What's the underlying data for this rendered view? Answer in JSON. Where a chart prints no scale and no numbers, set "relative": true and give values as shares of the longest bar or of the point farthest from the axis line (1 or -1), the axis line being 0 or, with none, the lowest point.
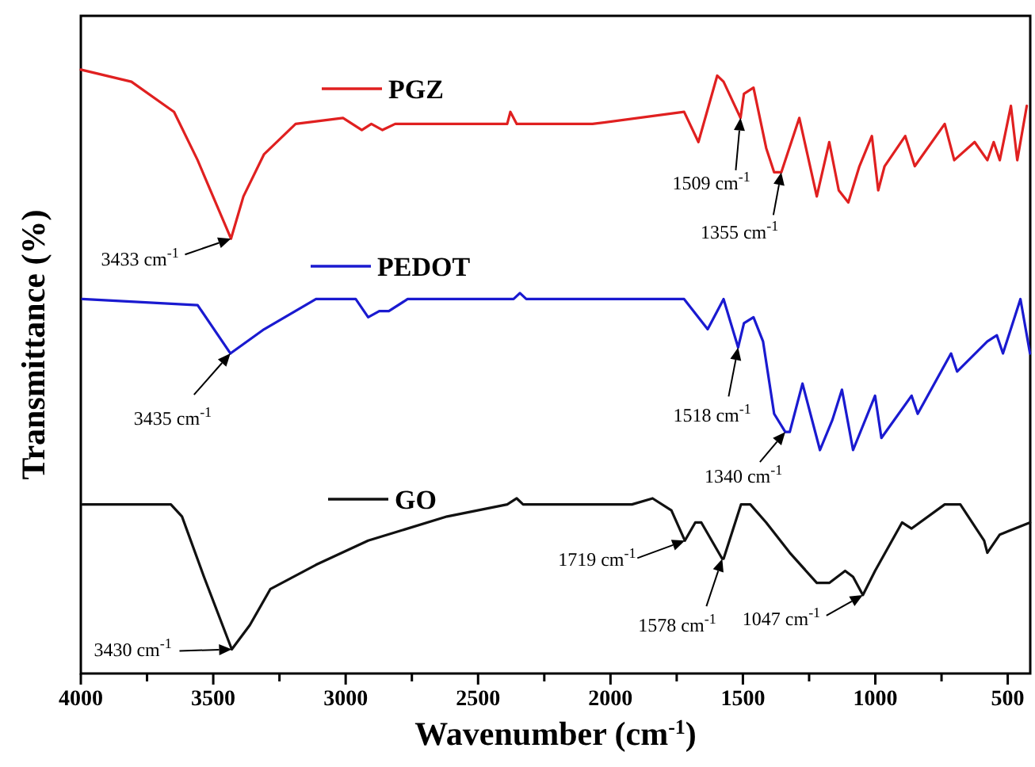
{
  "chart_data": {
    "type": "line",
    "relative": true,
    "xlabel": "Wavenumber (cm$^{-1}$)",
    "ylabel": "Transmittance (%)",
    "xlim": [
      4000,
      415
    ],
    "xticks": [
      4000,
      {
        "value": 3750,
        "label": null
      },
      3500,
      {
        "value": 3250,
        "label": null
      },
      3000,
      {
        "value": 2750,
        "label": null
      },
      2500,
      {
        "value": 2250,
        "label": null
      },
      2000,
      {
        "value": 1750,
        "label": null
      },
      1500,
      {
        "value": 1250,
        "label": null
      },
      1000,
      {
        "value": 750,
        "label": null
      },
      500
    ],
    "grid": false,
    "line_style": "solid",
    "marker": "none",
    "legend": "left",
    "series": [
      {
        "name": "PGZ",
        "color": "#e02020",
        "x": [
          4000,
          3809,
          3648,
          3559,
          3433,
          3386,
          3308,
          3189,
          3010,
          2939,
          2903,
          2861,
          2813,
          2390,
          2378,
          2354,
          2318,
          2068,
          1722,
          1668,
          1597,
          1573,
          1509,
          1496,
          1460,
          1412,
          1382,
          1355,
          1287,
          1221,
          1174,
          1138,
          1102,
          1060,
          1013,
          989,
          965,
          887,
          851,
          738,
          702,
          625,
          577,
          553,
          530,
          488,
          464,
          428
        ],
        "values": [
          1.0,
          0.98,
          0.93,
          0.85,
          0.72,
          0.79,
          0.86,
          0.91,
          0.92,
          0.9,
          0.91,
          0.9,
          0.91,
          0.91,
          0.93,
          0.91,
          0.91,
          0.91,
          0.93,
          0.88,
          0.99,
          0.98,
          0.92,
          0.96,
          0.97,
          0.87,
          0.83,
          0.83,
          0.92,
          0.79,
          0.88,
          0.8,
          0.78,
          0.84,
          0.89,
          0.8,
          0.84,
          0.89,
          0.84,
          0.91,
          0.85,
          0.88,
          0.85,
          0.88,
          0.85,
          0.94,
          0.85,
          0.94
        ]
      },
      {
        "name": "PEDOT",
        "color": "#1a1ad0",
        "x": [
          3994,
          3559,
          3435,
          3308,
          3112,
          2962,
          2915,
          2873,
          2837,
          2766,
          2366,
          2342,
          2318,
          1722,
          1633,
          1573,
          1518,
          1496,
          1460,
          1424,
          1382,
          1340,
          1323,
          1275,
          1209,
          1162,
          1126,
          1084,
          1001,
          977,
          863,
          840,
          714,
          691,
          577,
          541,
          518,
          452,
          416
        ],
        "values": [
          0.62,
          0.61,
          0.53,
          0.57,
          0.62,
          0.62,
          0.59,
          0.6,
          0.6,
          0.62,
          0.62,
          0.63,
          0.62,
          0.62,
          0.57,
          0.62,
          0.54,
          0.58,
          0.59,
          0.55,
          0.43,
          0.4,
          0.4,
          0.48,
          0.37,
          0.42,
          0.47,
          0.37,
          0.46,
          0.39,
          0.46,
          0.43,
          0.53,
          0.5,
          0.55,
          0.56,
          0.53,
          0.62,
          0.53
        ]
      },
      {
        "name": "GO",
        "color": "#111111",
        "x": [
          3994,
          3660,
          3618,
          3535,
          3430,
          3362,
          3284,
          3112,
          2915,
          2617,
          2390,
          2354,
          2330,
          1919,
          1841,
          1770,
          1719,
          1680,
          1657,
          1578,
          1573,
          1507,
          1472,
          1412,
          1323,
          1221,
          1174,
          1114,
          1084,
          1047,
          1001,
          899,
          863,
          738,
          679,
          589,
          577,
          530,
          416
        ],
        "values": [
          0.28,
          0.28,
          0.26,
          0.16,
          0.04,
          0.08,
          0.14,
          0.18,
          0.22,
          0.26,
          0.28,
          0.29,
          0.28,
          0.28,
          0.29,
          0.27,
          0.22,
          0.25,
          0.25,
          0.19,
          0.19,
          0.28,
          0.28,
          0.25,
          0.2,
          0.15,
          0.15,
          0.17,
          0.16,
          0.13,
          0.17,
          0.25,
          0.24,
          0.28,
          0.28,
          0.22,
          0.2,
          0.23,
          0.25
        ]
      }
    ],
    "annotations": [
      {
        "text": "3433 cm$^{-1}$",
        "x": 3433,
        "y": 0.72
      },
      {
        "text": "1509 cm$^{-1}$",
        "x": 1509,
        "y": 0.92
      },
      {
        "text": "1355 cm$^{-1}$",
        "x": 1355,
        "y": 0.83
      },
      {
        "text": "3435 cm$^{-1}$",
        "x": 3435,
        "y": 0.53
      },
      {
        "text": "1518 cm$^{-1}$",
        "x": 1518,
        "y": 0.54
      },
      {
        "text": "1340 cm$^{-1}$",
        "x": 1340,
        "y": 0.4
      },
      {
        "text": "3430 cm$^{-1}$",
        "x": 3430,
        "y": 0.04
      },
      {
        "text": "1719 cm$^{-1}$",
        "x": 1719,
        "y": 0.22
      },
      {
        "text": "1578 cm$^{-1}$",
        "x": 1578,
        "y": 0.19
      },
      {
        "text": "1047 cm$^{-1}$",
        "x": 1047,
        "y": 0.13
      }
    ]
  }
}
